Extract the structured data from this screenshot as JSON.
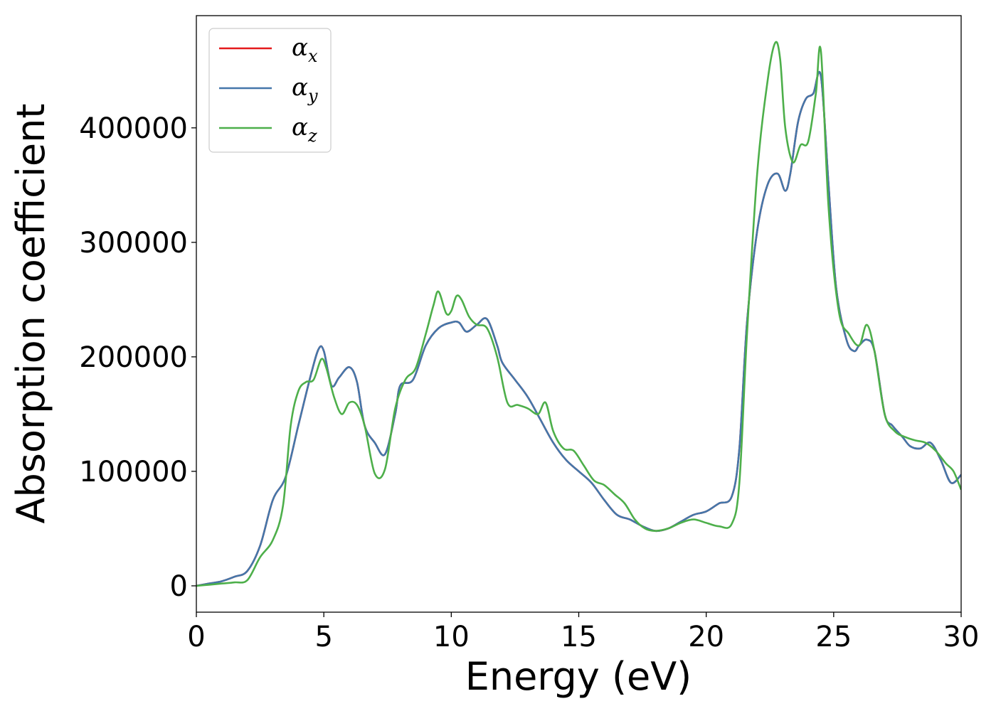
{
  "chart_data": {
    "type": "line",
    "title": "",
    "xlabel": "Energy (eV)",
    "ylabel": "Absorption coefficient",
    "xlim": [
      0,
      30
    ],
    "ylim": [
      -23000,
      498000
    ],
    "xticks": [
      0,
      5,
      10,
      15,
      20,
      25,
      30
    ],
    "yticks": [
      0,
      100000,
      200000,
      300000,
      400000
    ],
    "xtick_labels": [
      "0",
      "5",
      "10",
      "15",
      "20",
      "25",
      "30"
    ],
    "ytick_labels": [
      "0",
      "100000",
      "200000",
      "300000",
      "400000"
    ],
    "grid": false,
    "legend_position": "top-left",
    "series": [
      {
        "name": "α_x",
        "legend_symbol": "α",
        "legend_subscript": "x",
        "color": "#e41a1c",
        "x": [
          0,
          0.5,
          1,
          1.5,
          2,
          2.5,
          3,
          3.5,
          4,
          4.5,
          4.8,
          5,
          5.3,
          5.6,
          6,
          6.3,
          6.6,
          7,
          7.4,
          7.8,
          8,
          8.5,
          9,
          9.5,
          10,
          10.3,
          10.6,
          11,
          11.4,
          11.8,
          12,
          12.5,
          13,
          13.5,
          14,
          14.5,
          15,
          15.5,
          16,
          16.5,
          17,
          17.5,
          18,
          18.5,
          19,
          19.5,
          20,
          20.5,
          21,
          21.3,
          21.6,
          22,
          22.4,
          22.8,
          23.1,
          23.3,
          23.6,
          23.9,
          24.2,
          24.5,
          24.8,
          25.1,
          25.5,
          25.8,
          26,
          26.3,
          26.6,
          27,
          27.3,
          27.7,
          28,
          28.4,
          28.8,
          29.2,
          29.6,
          30
        ],
        "values": [
          0,
          2000,
          4000,
          8000,
          13000,
          35000,
          75000,
          95000,
          140000,
          185000,
          207000,
          205000,
          175000,
          182000,
          191000,
          178000,
          140000,
          125000,
          115000,
          150000,
          175000,
          180000,
          210000,
          225000,
          230000,
          230000,
          222000,
          228000,
          233000,
          210000,
          195000,
          180000,
          165000,
          145000,
          125000,
          110000,
          100000,
          90000,
          75000,
          62000,
          58000,
          52000,
          48000,
          50000,
          56000,
          62000,
          65000,
          72000,
          78000,
          120000,
          230000,
          310000,
          350000,
          360000,
          345000,
          360000,
          405000,
          425000,
          430000,
          445000,
          350000,
          260000,
          215000,
          205000,
          210000,
          215000,
          205000,
          150000,
          140000,
          130000,
          122000,
          120000,
          125000,
          110000,
          90000,
          97000
        ]
      },
      {
        "name": "α_y",
        "legend_symbol": "α",
        "legend_subscript": "y",
        "color": "#4477aa",
        "x": [
          0,
          0.5,
          1,
          1.5,
          2,
          2.5,
          3,
          3.5,
          4,
          4.5,
          4.8,
          5,
          5.3,
          5.6,
          6,
          6.3,
          6.6,
          7,
          7.4,
          7.8,
          8,
          8.5,
          9,
          9.5,
          10,
          10.3,
          10.6,
          11,
          11.4,
          11.8,
          12,
          12.5,
          13,
          13.5,
          14,
          14.5,
          15,
          15.5,
          16,
          16.5,
          17,
          17.5,
          18,
          18.5,
          19,
          19.5,
          20,
          20.5,
          21,
          21.3,
          21.6,
          22,
          22.4,
          22.8,
          23.1,
          23.3,
          23.6,
          23.9,
          24.2,
          24.5,
          24.8,
          25.1,
          25.5,
          25.8,
          26,
          26.3,
          26.6,
          27,
          27.3,
          27.7,
          28,
          28.4,
          28.8,
          29.2,
          29.6,
          30
        ],
        "values": [
          0,
          2000,
          4000,
          8000,
          13000,
          35000,
          75000,
          95000,
          140000,
          185000,
          207000,
          205000,
          175000,
          182000,
          191000,
          178000,
          140000,
          125000,
          115000,
          150000,
          175000,
          180000,
          210000,
          225000,
          230000,
          230000,
          222000,
          228000,
          233000,
          210000,
          195000,
          180000,
          165000,
          145000,
          125000,
          110000,
          100000,
          90000,
          75000,
          62000,
          58000,
          52000,
          48000,
          50000,
          56000,
          62000,
          65000,
          72000,
          78000,
          120000,
          230000,
          310000,
          350000,
          360000,
          345000,
          360000,
          405000,
          425000,
          430000,
          445000,
          350000,
          260000,
          215000,
          205000,
          210000,
          215000,
          205000,
          150000,
          140000,
          130000,
          122000,
          120000,
          125000,
          110000,
          90000,
          97000
        ]
      },
      {
        "name": "α_z",
        "legend_symbol": "α",
        "legend_subscript": "z",
        "color": "#4daf4a",
        "x": [
          0,
          0.5,
          1,
          1.5,
          2,
          2.5,
          3,
          3.4,
          3.7,
          4,
          4.3,
          4.6,
          4.9,
          5.1,
          5.4,
          5.7,
          6,
          6.3,
          6.6,
          7,
          7.4,
          7.8,
          8.2,
          8.6,
          9,
          9.3,
          9.5,
          9.8,
          10,
          10.2,
          10.4,
          10.7,
          11,
          11.4,
          11.8,
          12.2,
          12.6,
          13,
          13.4,
          13.7,
          14,
          14.4,
          14.8,
          15.2,
          15.6,
          16,
          16.4,
          16.8,
          17.2,
          17.6,
          18,
          18.5,
          19,
          19.5,
          20,
          20.5,
          21,
          21.3,
          21.6,
          22,
          22.4,
          22.7,
          22.9,
          23.1,
          23.4,
          23.7,
          24,
          24.3,
          24.5,
          24.8,
          25.2,
          25.6,
          26,
          26.3,
          26.6,
          27,
          27.4,
          27.8,
          28.2,
          28.6,
          29,
          29.4,
          29.7,
          30
        ],
        "values": [
          0,
          1000,
          2000,
          3000,
          5000,
          25000,
          40000,
          70000,
          140000,
          170000,
          178000,
          180000,
          198000,
          190000,
          165000,
          150000,
          160000,
          158000,
          140000,
          98000,
          102000,
          155000,
          180000,
          190000,
          220000,
          245000,
          257000,
          238000,
          240000,
          253000,
          250000,
          235000,
          228000,
          225000,
          200000,
          160000,
          158000,
          155000,
          150000,
          160000,
          135000,
          120000,
          118000,
          105000,
          92000,
          88000,
          80000,
          72000,
          58000,
          50000,
          48000,
          50000,
          55000,
          58000,
          55000,
          52000,
          54000,
          90000,
          220000,
          360000,
          440000,
          474000,
          460000,
          400000,
          370000,
          385000,
          388000,
          430000,
          467000,
          330000,
          240000,
          220000,
          210000,
          228000,
          205000,
          150000,
          135000,
          130000,
          127000,
          125000,
          118000,
          107000,
          100000,
          84000
        ]
      }
    ]
  }
}
